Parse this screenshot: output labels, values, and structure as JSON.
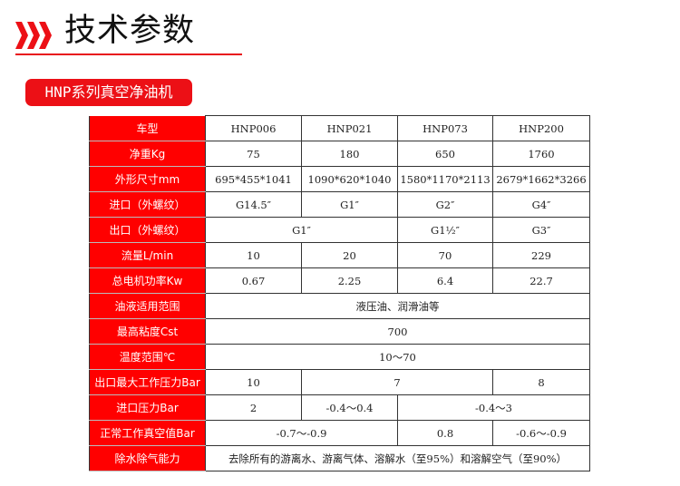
{
  "header": {
    "title": "技术参数",
    "icon": "triple-chevron-right-icon",
    "accent": "#e8141b"
  },
  "badge": {
    "label": "HNP系列真空净油机"
  },
  "table": {
    "rows": [
      {
        "label": "车型",
        "cells": [
          {
            "v": "HNP006",
            "span": 1
          },
          {
            "v": "HNP021",
            "span": 1
          },
          {
            "v": "HNP073",
            "span": 1
          },
          {
            "v": "HNP200",
            "span": 1
          }
        ]
      },
      {
        "label": "净重Kg",
        "cells": [
          {
            "v": "75",
            "span": 1
          },
          {
            "v": "180",
            "span": 1
          },
          {
            "v": "650",
            "span": 1
          },
          {
            "v": "1760",
            "span": 1
          }
        ]
      },
      {
        "label": "外形尺寸mm",
        "cells": [
          {
            "v": "695*455*1041",
            "span": 1
          },
          {
            "v": "1090*620*1040",
            "span": 1
          },
          {
            "v": "1580*1170*2113",
            "span": 1
          },
          {
            "v": "2679*1662*3266",
            "span": 1
          }
        ]
      },
      {
        "label": "进口（外螺纹）",
        "cells": [
          {
            "v": "G14.5″",
            "span": 1
          },
          {
            "v": "G1″",
            "span": 1
          },
          {
            "v": "G2″",
            "span": 1
          },
          {
            "v": "G4″",
            "span": 1
          }
        ]
      },
      {
        "label": "出口（外螺纹）",
        "cells": [
          {
            "v": "G1″",
            "span": 2
          },
          {
            "v": "G1½″",
            "span": 1
          },
          {
            "v": "G3″",
            "span": 1
          }
        ]
      },
      {
        "label": "流量L/min",
        "cells": [
          {
            "v": "10",
            "span": 1
          },
          {
            "v": "20",
            "span": 1
          },
          {
            "v": "70",
            "span": 1
          },
          {
            "v": "229",
            "span": 1
          }
        ]
      },
      {
        "label": "总电机功率Kw",
        "cells": [
          {
            "v": "0.67",
            "span": 1
          },
          {
            "v": "2.25",
            "span": 1
          },
          {
            "v": "6.4",
            "span": 1
          },
          {
            "v": "22.7",
            "span": 1
          }
        ]
      },
      {
        "label": "油液适用范围",
        "cells": [
          {
            "v": "液压油、润滑油等",
            "span": 4
          }
        ]
      },
      {
        "label": "最高粘度Cst",
        "cells": [
          {
            "v": "700",
            "span": 4
          }
        ]
      },
      {
        "label": "温度范围℃",
        "cells": [
          {
            "v": "10～70",
            "span": 4
          }
        ]
      },
      {
        "label": "出口最大工作压力Bar",
        "cells": [
          {
            "v": "10",
            "span": 1
          },
          {
            "v": "7",
            "span": 2
          },
          {
            "v": "8",
            "span": 1
          }
        ]
      },
      {
        "label": "进口压力Bar",
        "cells": [
          {
            "v": "2",
            "span": 1
          },
          {
            "v": "-0.4～0.4",
            "span": 1
          },
          {
            "v": "-0.4～3",
            "span": 2
          }
        ]
      },
      {
        "label": "正常工作真空值Bar",
        "cells": [
          {
            "v": "-0.7～-0.9",
            "span": 2
          },
          {
            "v": "0.8",
            "span": 1
          },
          {
            "v": "-0.6～-0.9",
            "span": 1
          }
        ]
      },
      {
        "label": "除水除气能力",
        "cells": [
          {
            "v": "去除所有的游离水、游离气体、溶解水（至95%）和溶解空气（至90%）",
            "span": 4
          }
        ]
      }
    ]
  }
}
